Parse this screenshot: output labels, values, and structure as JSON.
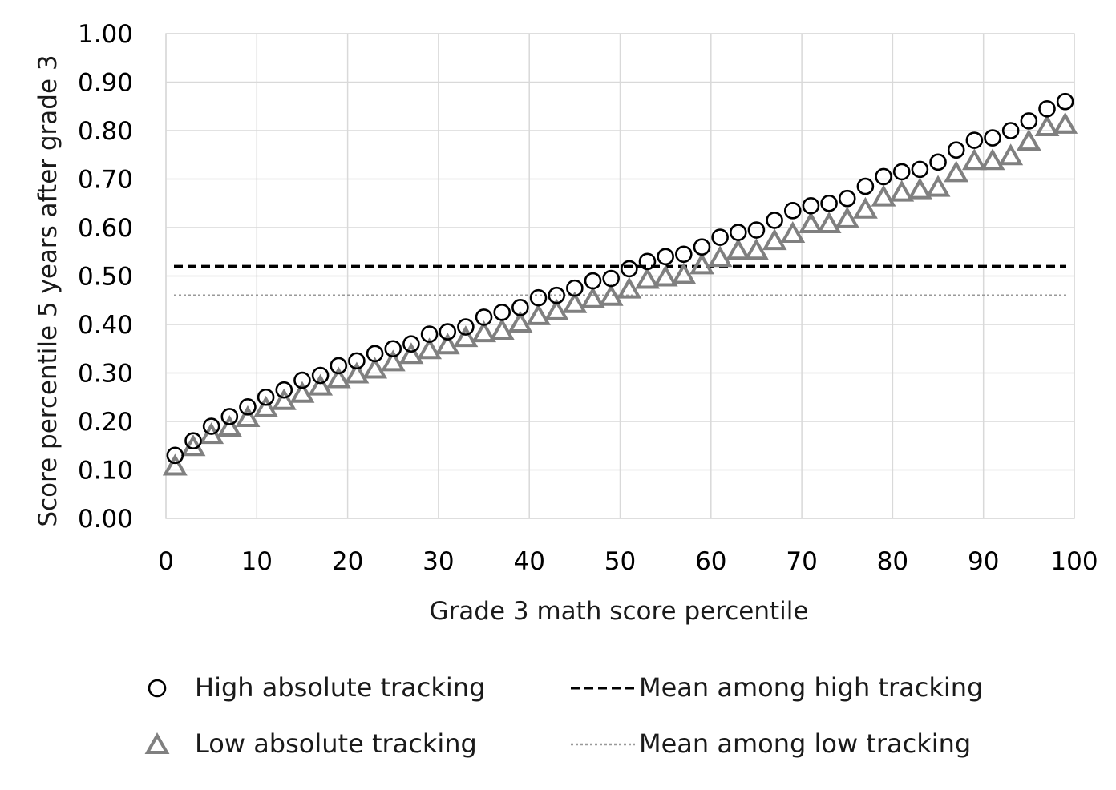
{
  "chart_data": {
    "type": "scatter",
    "title": "",
    "xlabel": "Grade 3 math score percentile",
    "ylabel": "Score percentile 5 years after grade 3",
    "xlim": [
      0,
      100
    ],
    "ylim": [
      0,
      1
    ],
    "x_ticks": [
      "0",
      "10",
      "20",
      "30",
      "40",
      "50",
      "60",
      "70",
      "80",
      "90",
      "100"
    ],
    "y_ticks": [
      "0.00",
      "0.10",
      "0.20",
      "0.30",
      "0.40",
      "0.50",
      "0.60",
      "0.70",
      "0.80",
      "0.90",
      "1.00"
    ],
    "grid": true,
    "legend_position": "bottom",
    "series": [
      {
        "name": "High absolute tracking",
        "marker": "circle",
        "color": "#000000",
        "x": [
          1,
          3,
          5,
          7,
          9,
          11,
          13,
          15,
          17,
          19,
          21,
          23,
          25,
          27,
          29,
          31,
          33,
          35,
          37,
          39,
          41,
          43,
          45,
          47,
          49,
          51,
          53,
          55,
          57,
          59,
          61,
          63,
          65,
          67,
          69,
          71,
          73,
          75,
          77,
          79,
          81,
          83,
          85,
          87,
          89,
          91,
          93,
          95,
          97,
          99
        ],
        "y": [
          0.13,
          0.16,
          0.19,
          0.21,
          0.23,
          0.25,
          0.265,
          0.285,
          0.295,
          0.315,
          0.325,
          0.34,
          0.35,
          0.36,
          0.38,
          0.385,
          0.395,
          0.415,
          0.425,
          0.435,
          0.455,
          0.46,
          0.475,
          0.49,
          0.495,
          0.515,
          0.53,
          0.54,
          0.545,
          0.56,
          0.58,
          0.59,
          0.595,
          0.615,
          0.635,
          0.645,
          0.65,
          0.66,
          0.685,
          0.705,
          0.715,
          0.72,
          0.735,
          0.76,
          0.78,
          0.785,
          0.8,
          0.82,
          0.845,
          0.86
        ]
      },
      {
        "name": "Low absolute tracking",
        "marker": "triangle",
        "color": "#808080",
        "x": [
          1,
          3,
          5,
          7,
          9,
          11,
          13,
          15,
          17,
          19,
          21,
          23,
          25,
          27,
          29,
          31,
          33,
          35,
          37,
          39,
          41,
          43,
          45,
          47,
          49,
          51,
          53,
          55,
          57,
          59,
          61,
          63,
          65,
          67,
          69,
          71,
          73,
          75,
          77,
          79,
          81,
          83,
          85,
          87,
          89,
          91,
          93,
          95,
          97,
          99
        ],
        "y": [
          0.105,
          0.145,
          0.17,
          0.185,
          0.205,
          0.225,
          0.24,
          0.255,
          0.27,
          0.285,
          0.295,
          0.305,
          0.32,
          0.335,
          0.345,
          0.355,
          0.37,
          0.38,
          0.385,
          0.4,
          0.415,
          0.425,
          0.44,
          0.45,
          0.455,
          0.47,
          0.49,
          0.495,
          0.5,
          0.52,
          0.535,
          0.55,
          0.55,
          0.57,
          0.585,
          0.605,
          0.605,
          0.615,
          0.635,
          0.66,
          0.67,
          0.675,
          0.68,
          0.71,
          0.735,
          0.735,
          0.745,
          0.775,
          0.805,
          0.81
        ]
      },
      {
        "name": "Mean among high tracking",
        "line_style": "dashed",
        "color": "#000000",
        "y": 0.52
      },
      {
        "name": "Mean among low tracking",
        "line_style": "dotted",
        "color": "#9a9a9a",
        "y": 0.46
      }
    ]
  }
}
